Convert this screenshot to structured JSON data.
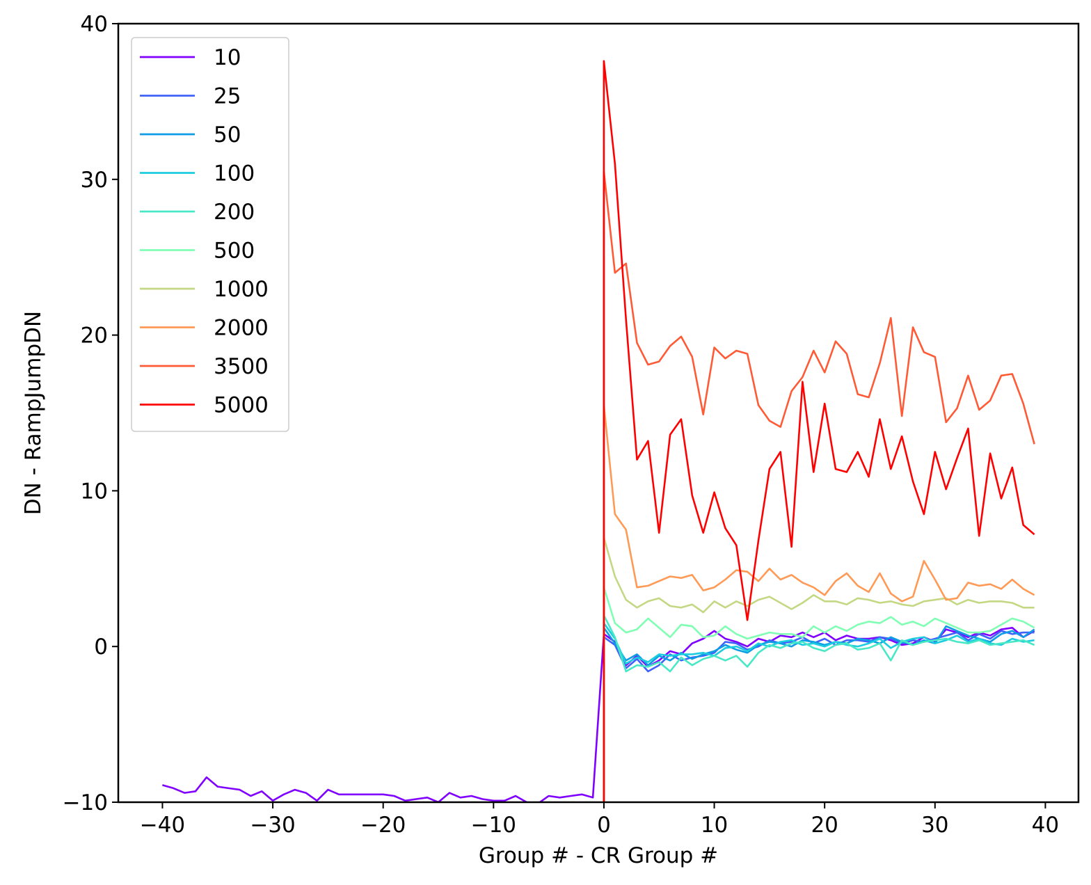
{
  "chart_data": {
    "type": "line",
    "title": "",
    "xlabel": "Group # - CR Group #",
    "ylabel": "DN - RampJumpDN",
    "xlim": [
      -44,
      43
    ],
    "ylim": [
      -10,
      40
    ],
    "xticks": [
      -40,
      -30,
      -20,
      -10,
      0,
      10,
      20,
      30,
      40
    ],
    "yticks": [
      -10,
      0,
      10,
      20,
      30,
      40
    ],
    "xtick_labels": [
      "−40",
      "−30",
      "−20",
      "−10",
      "0",
      "10",
      "20",
      "30",
      "40"
    ],
    "ytick_labels": [
      "−10",
      "0",
      "10",
      "20",
      "30",
      "40"
    ],
    "grid": false,
    "legend_position": "upper-left",
    "series": [
      {
        "name": "10",
        "color": "#8000ff",
        "x": [
          -40,
          -39,
          -38,
          -37,
          -36,
          -35,
          -34,
          -33,
          -32,
          -31,
          -30,
          -29,
          -28,
          -27,
          -26,
          -25,
          -24,
          -23,
          -22,
          -21,
          -20,
          -19,
          -18,
          -17,
          -16,
          -15,
          -14,
          -13,
          -12,
          -11,
          -10,
          -9,
          -8,
          -7,
          -6,
          -5,
          -4,
          -3,
          -2,
          -1,
          0,
          1,
          2,
          3,
          4,
          5,
          6,
          7,
          8,
          9,
          10,
          11,
          12,
          13,
          14,
          15,
          16,
          17,
          18,
          19,
          20,
          21,
          22,
          23,
          24,
          25,
          26,
          27,
          28,
          29,
          30,
          31,
          32,
          33,
          34,
          35,
          36,
          37,
          38,
          39
        ],
        "y": [
          -8.9,
          -9.1,
          -9.4,
          -9.3,
          -8.4,
          -9.0,
          -9.1,
          -9.2,
          -9.6,
          -9.3,
          -9.9,
          -9.5,
          -9.2,
          -9.4,
          -9.9,
          -9.2,
          -9.5,
          -9.5,
          -9.5,
          -9.5,
          -9.5,
          -9.6,
          -9.9,
          -9.8,
          -9.7,
          -10.0,
          -9.4,
          -9.7,
          -9.6,
          -9.8,
          -9.9,
          -9.9,
          -9.6,
          -10.0,
          -10.1,
          -9.6,
          -9.7,
          -9.6,
          -9.5,
          -9.7,
          0.8,
          0.3,
          -1.2,
          -0.6,
          -1.3,
          -0.9,
          -0.3,
          -0.5,
          0.2,
          0.5,
          1.0,
          0.5,
          0.3,
          0.0,
          0.5,
          0.3,
          0.7,
          0.6,
          0.9,
          0.6,
          0.9,
          0.4,
          0.7,
          0.5,
          0.5,
          0.6,
          0.4,
          0.1,
          0.2,
          0.6,
          0.3,
          1.1,
          0.9,
          0.6,
          0.9,
          0.7,
          1.1,
          1.2,
          0.6,
          1.0
        ]
      },
      {
        "name": "25",
        "color": "#4062fa",
        "x": [
          0,
          1,
          2,
          3,
          4,
          5,
          6,
          7,
          8,
          9,
          10,
          11,
          12,
          13,
          14,
          15,
          16,
          17,
          18,
          19,
          20,
          21,
          22,
          23,
          24,
          25,
          26,
          27,
          28,
          29,
          30,
          31,
          32,
          33,
          34,
          35,
          36,
          37,
          38,
          39
        ],
        "y": [
          0.6,
          0.1,
          -1.4,
          -0.8,
          -1.6,
          -1.2,
          -0.5,
          -0.9,
          -0.7,
          -0.6,
          -0.4,
          0.3,
          0.2,
          -0.2,
          0.0,
          0.4,
          0.2,
          0.3,
          0.6,
          0.2,
          0.5,
          0.1,
          0.4,
          0.4,
          0.3,
          0.6,
          0.5,
          0.2,
          0.4,
          0.3,
          0.5,
          0.7,
          0.9,
          0.4,
          0.8,
          0.5,
          1.0,
          0.8,
          0.9,
          0.9
        ]
      },
      {
        "name": "50",
        "color": "#0e9de5",
        "x": [
          0,
          1,
          2,
          3,
          4,
          5,
          6,
          7,
          8,
          9,
          10,
          11,
          12,
          13,
          14,
          15,
          16,
          17,
          18,
          19,
          20,
          21,
          22,
          23,
          24,
          25,
          26,
          27,
          28,
          29,
          30,
          31,
          32,
          33,
          34,
          35,
          36,
          37,
          38,
          39
        ],
        "y": [
          1.2,
          0.2,
          -0.9,
          -0.5,
          -1.2,
          -0.6,
          -0.9,
          -0.4,
          -0.8,
          -0.5,
          -0.3,
          0.1,
          -0.2,
          -0.4,
          0.1,
          0.3,
          0.2,
          0.0,
          0.4,
          0.3,
          0.1,
          0.3,
          0.2,
          0.5,
          0.4,
          0.2,
          0.6,
          0.3,
          0.1,
          0.4,
          0.2,
          1.3,
          1.0,
          0.7,
          0.5,
          0.3,
          0.8,
          1.0,
          0.6,
          1.1
        ]
      },
      {
        "name": "100",
        "color": "#1ccde0",
        "x": [
          0,
          1,
          2,
          3,
          4,
          5,
          6,
          7,
          8,
          9,
          10,
          11,
          12,
          13,
          14,
          15,
          16,
          17,
          18,
          19,
          20,
          21,
          22,
          23,
          24,
          25,
          26,
          27,
          28,
          29,
          30,
          31,
          32,
          33,
          34,
          35,
          36,
          37,
          38,
          39
        ],
        "y": [
          1.5,
          0.5,
          -1.1,
          -0.7,
          -1.0,
          -0.5,
          -0.6,
          -0.5,
          -0.5,
          -0.4,
          -0.6,
          -0.1,
          0.0,
          -0.3,
          0.2,
          0.0,
          0.3,
          0.4,
          0.1,
          0.2,
          0.0,
          0.3,
          0.1,
          0.0,
          0.2,
          0.5,
          -0.1,
          0.3,
          0.5,
          0.6,
          0.2,
          0.4,
          0.7,
          0.3,
          0.5,
          0.2,
          0.1,
          0.5,
          0.3,
          0.4
        ]
      },
      {
        "name": "200",
        "color": "#48e8c6",
        "x": [
          0,
          1,
          2,
          3,
          4,
          5,
          6,
          7,
          8,
          9,
          10,
          11,
          12,
          13,
          14,
          15,
          16,
          17,
          18,
          19,
          20,
          21,
          22,
          23,
          24,
          25,
          26,
          27,
          28,
          29,
          30,
          31,
          32,
          33,
          34,
          35,
          36,
          37,
          38,
          39
        ],
        "y": [
          2.0,
          0.6,
          -1.6,
          -1.2,
          -1.3,
          -1.0,
          -1.6,
          -0.7,
          -1.2,
          -0.8,
          -0.6,
          -0.9,
          -0.6,
          -1.3,
          -0.4,
          0.1,
          -0.1,
          0.2,
          0.3,
          -0.1,
          -0.3,
          0.1,
          0.2,
          -0.2,
          -0.1,
          0.2,
          -0.9,
          0.4,
          0.1,
          0.3,
          0.4,
          0.5,
          0.3,
          0.2,
          0.4,
          0.1,
          0.2,
          0.3,
          0.4,
          0.1
        ]
      },
      {
        "name": "500",
        "color": "#80ffb4",
        "x": [
          0,
          1,
          2,
          3,
          4,
          5,
          6,
          7,
          8,
          9,
          10,
          11,
          12,
          13,
          14,
          15,
          16,
          17,
          18,
          19,
          20,
          21,
          22,
          23,
          24,
          25,
          26,
          27,
          28,
          29,
          30,
          31,
          32,
          33,
          34,
          35,
          36,
          37,
          38,
          39
        ],
        "y": [
          3.8,
          1.5,
          0.9,
          1.1,
          1.8,
          1.2,
          0.6,
          1.4,
          1.3,
          0.6,
          0.7,
          1.3,
          0.8,
          0.5,
          0.7,
          0.9,
          0.8,
          0.8,
          0.6,
          1.3,
          0.9,
          1.3,
          1.0,
          1.4,
          1.6,
          1.5,
          1.9,
          1.4,
          1.6,
          1.3,
          1.8,
          1.5,
          1.2,
          0.9,
          0.9,
          1.0,
          1.4,
          1.8,
          1.6,
          1.2
        ]
      },
      {
        "name": "1000",
        "color": "#c4d884",
        "x": [
          0,
          1,
          2,
          3,
          4,
          5,
          6,
          7,
          8,
          9,
          10,
          11,
          12,
          13,
          14,
          15,
          16,
          17,
          18,
          19,
          20,
          21,
          22,
          23,
          24,
          25,
          26,
          27,
          28,
          29,
          30,
          31,
          32,
          33,
          34,
          35,
          36,
          37,
          38,
          39
        ],
        "y": [
          7.0,
          4.5,
          3.0,
          2.5,
          2.9,
          3.1,
          2.6,
          2.5,
          2.7,
          2.2,
          2.9,
          2.5,
          2.9,
          2.6,
          3.0,
          3.2,
          2.8,
          2.4,
          2.8,
          3.3,
          2.9,
          2.9,
          2.7,
          3.1,
          3.0,
          2.8,
          2.9,
          2.7,
          2.6,
          2.9,
          3.0,
          3.1,
          2.7,
          3.0,
          2.8,
          2.9,
          2.9,
          2.8,
          2.5,
          2.5
        ]
      },
      {
        "name": "2000",
        "color": "#ff9a56",
        "x": [
          0,
          1,
          2,
          3,
          4,
          5,
          6,
          7,
          8,
          9,
          10,
          11,
          12,
          13,
          14,
          15,
          16,
          17,
          18,
          19,
          20,
          21,
          22,
          23,
          24,
          25,
          26,
          27,
          28,
          29,
          30,
          31,
          32,
          33,
          34,
          35,
          36,
          37,
          38,
          39
        ],
        "y": [
          15.5,
          8.5,
          7.5,
          3.8,
          3.9,
          4.2,
          4.5,
          4.4,
          4.6,
          3.6,
          3.8,
          4.3,
          4.9,
          4.8,
          4.2,
          5.0,
          4.3,
          4.6,
          4.1,
          3.8,
          3.3,
          4.2,
          4.7,
          3.9,
          3.5,
          4.7,
          3.4,
          2.9,
          3.2,
          5.5,
          4.3,
          3.0,
          3.1,
          4.1,
          3.9,
          4.0,
          3.7,
          4.3,
          3.7,
          3.3
        ]
      },
      {
        "name": "3500",
        "color": "#ff5a36",
        "x": [
          0,
          1,
          2,
          3,
          4,
          5,
          6,
          7,
          8,
          9,
          10,
          11,
          12,
          13,
          14,
          15,
          16,
          17,
          18,
          19,
          20,
          21,
          22,
          23,
          24,
          25,
          26,
          27,
          28,
          29,
          30,
          31,
          32,
          33,
          34,
          35,
          36,
          37,
          38,
          39
        ],
        "y": [
          30.5,
          24.0,
          24.6,
          19.5,
          18.1,
          18.3,
          19.3,
          19.9,
          18.6,
          14.9,
          19.2,
          18.5,
          19.0,
          18.8,
          15.5,
          14.5,
          14.1,
          16.4,
          17.3,
          19.0,
          17.6,
          19.6,
          18.8,
          16.2,
          16.0,
          18.2,
          21.1,
          14.8,
          20.5,
          18.9,
          18.6,
          14.4,
          15.3,
          17.4,
          15.2,
          15.8,
          17.4,
          17.5,
          15.6,
          13.0
        ]
      },
      {
        "name": "5000",
        "color": "#ff0000",
        "x": [
          0,
          1,
          2,
          3,
          4,
          5,
          6,
          7,
          8,
          9,
          10,
          11,
          12,
          13,
          14,
          15,
          16,
          17,
          18,
          19,
          20,
          21,
          22,
          23,
          24,
          25,
          26,
          27,
          28,
          29,
          30,
          31,
          32,
          33,
          34,
          35,
          36,
          37,
          38,
          39
        ],
        "y": [
          37.6,
          31.0,
          21.0,
          12.0,
          13.2,
          7.3,
          13.6,
          14.6,
          9.7,
          7.3,
          9.9,
          7.6,
          6.5,
          1.7,
          6.8,
          11.4,
          12.5,
          6.4,
          17.0,
          11.2,
          15.6,
          11.4,
          11.2,
          12.5,
          10.9,
          14.6,
          11.4,
          13.5,
          10.6,
          8.5,
          12.5,
          10.1,
          12.1,
          14.0,
          7.1,
          12.4,
          9.5,
          11.5,
          7.8,
          7.2
        ]
      }
    ]
  }
}
